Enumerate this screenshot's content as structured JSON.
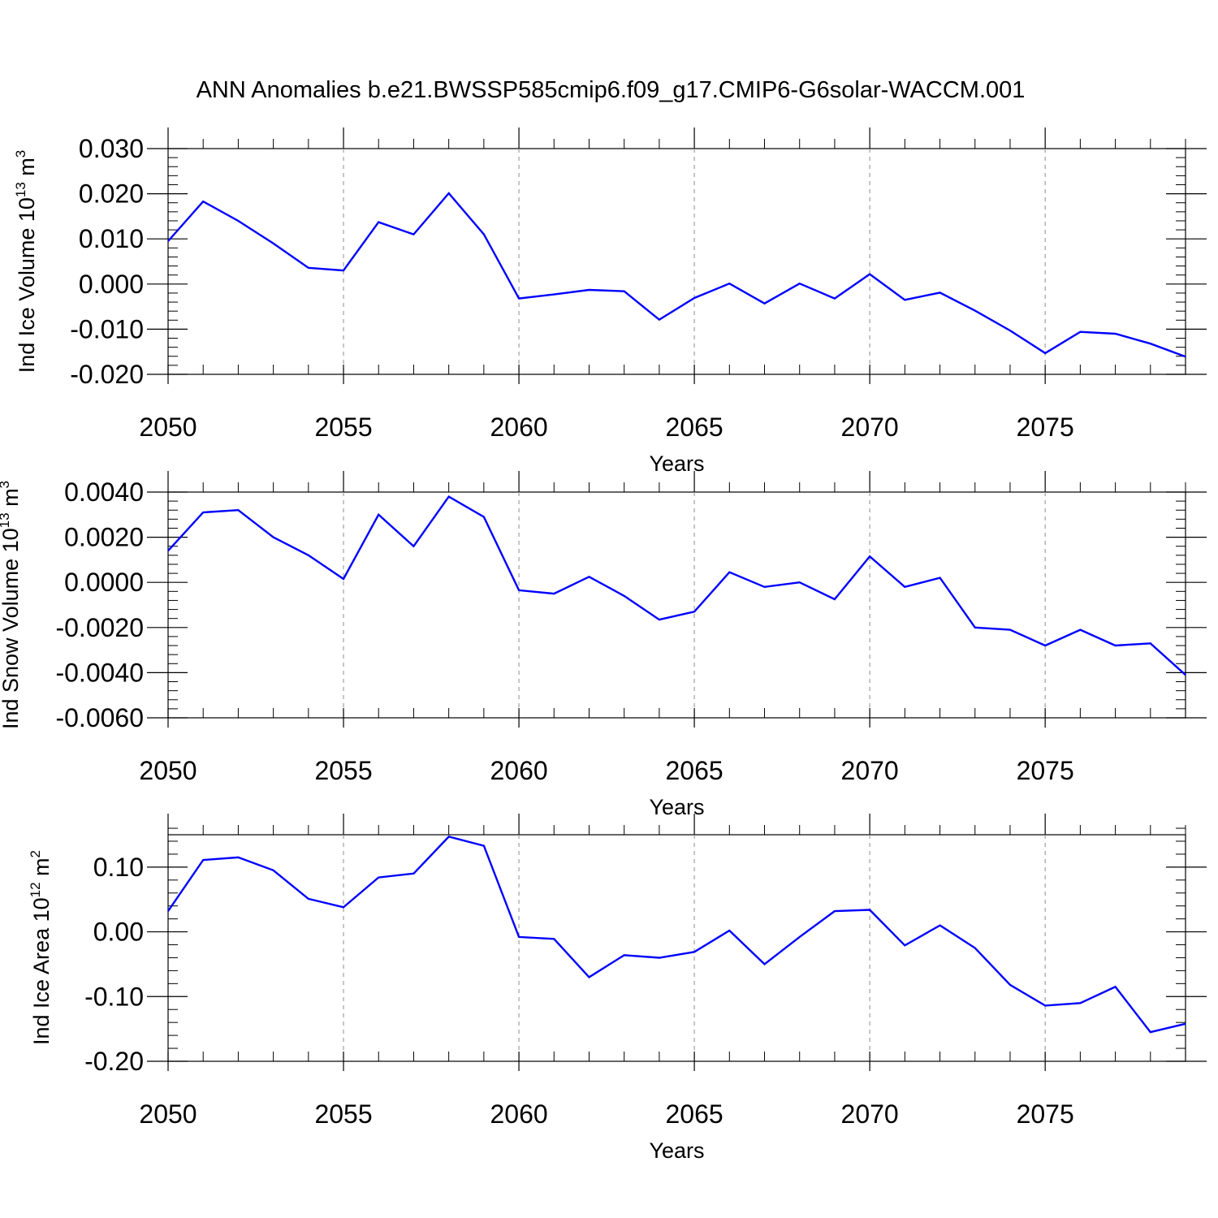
{
  "title": "ANN Anomalies b.e21.BWSSP585cmip6.f09_g17.CMIP6-G6solar-WACCM.001",
  "colors": {
    "line": "#0000ff",
    "axis": "#000000",
    "grid": "#a0a0a0"
  },
  "chart_data": [
    {
      "type": "line",
      "ylabel": "Ind Ice Volume 10",
      "ylabel_exp": "13",
      "ylabel_unit": " m",
      "ylabel_unit_exp": "3",
      "xlabel": "Years",
      "xlim": [
        2050,
        2079
      ],
      "ylim": [
        -0.02,
        0.03
      ],
      "yticks": [
        -0.02,
        -0.01,
        0.0,
        0.01,
        0.02,
        0.03
      ],
      "yticklabels": [
        "-0.020",
        "-0.010",
        "0.000",
        "0.010",
        "0.020",
        "0.030"
      ],
      "ymajor_step": 0.01,
      "yminor_step": 0.002,
      "xticks": [
        2050,
        2055,
        2060,
        2065,
        2070,
        2075
      ],
      "xticklabels": [
        "2050",
        "2055",
        "2060",
        "2065",
        "2070",
        "2075"
      ],
      "x": [
        2050,
        2051,
        2052,
        2053,
        2054,
        2055,
        2056,
        2057,
        2058,
        2059,
        2060,
        2061,
        2062,
        2063,
        2064,
        2065,
        2066,
        2067,
        2068,
        2069,
        2070,
        2071,
        2072,
        2073,
        2074,
        2075,
        2076,
        2077,
        2078,
        2079
      ],
      "y": [
        0.0095,
        0.0183,
        0.014,
        0.009,
        0.0036,
        0.003,
        0.0137,
        0.011,
        0.0201,
        0.011,
        -0.0032,
        -0.0023,
        -0.0013,
        -0.0016,
        -0.0079,
        -0.0031,
        0.0001,
        -0.0043,
        0.0001,
        -0.0032,
        0.0022,
        -0.0035,
        -0.0019,
        -0.0059,
        -0.0103,
        -0.0153,
        -0.0106,
        -0.011,
        -0.0132,
        -0.0161
      ]
    },
    {
      "type": "line",
      "ylabel": "Ind Snow Volume 10",
      "ylabel_exp": "13",
      "ylabel_unit": " m",
      "ylabel_unit_exp": "3",
      "xlabel": "Years",
      "xlim": [
        2050,
        2079
      ],
      "ylim": [
        -0.006,
        0.004
      ],
      "yticks": [
        -0.006,
        -0.004,
        -0.002,
        0.0,
        0.002,
        0.004
      ],
      "yticklabels": [
        "-0.0060",
        "-0.0040",
        "-0.0020",
        "0.0000",
        "0.0020",
        "0.0040"
      ],
      "ymajor_step": 0.002,
      "yminor_step": 0.0004,
      "xticks": [
        2050,
        2055,
        2060,
        2065,
        2070,
        2075
      ],
      "xticklabels": [
        "2050",
        "2055",
        "2060",
        "2065",
        "2070",
        "2075"
      ],
      "x": [
        2050,
        2051,
        2052,
        2053,
        2054,
        2055,
        2056,
        2057,
        2058,
        2059,
        2060,
        2061,
        2062,
        2063,
        2064,
        2065,
        2066,
        2067,
        2068,
        2069,
        2070,
        2071,
        2072,
        2073,
        2074,
        2075,
        2076,
        2077,
        2078,
        2079
      ],
      "y": [
        0.0014,
        0.0031,
        0.0032,
        0.002,
        0.0012,
        0.00015,
        0.003,
        0.0016,
        0.0038,
        0.0029,
        -0.00035,
        -0.0005,
        0.00025,
        -0.0006,
        -0.00165,
        -0.0013,
        0.00045,
        -0.0002,
        0.0,
        -0.00075,
        0.00115,
        -0.0002,
        0.0002,
        -0.002,
        -0.0021,
        -0.0028,
        -0.0021,
        -0.0028,
        -0.0027,
        -0.0041
      ]
    },
    {
      "type": "line",
      "ylabel": "Ind Ice Area 10",
      "ylabel_exp": "12",
      "ylabel_unit": " m",
      "ylabel_unit_exp": "2",
      "xlabel": "Years",
      "xlim": [
        2050,
        2079
      ],
      "ylim": [
        -0.2,
        0.15
      ],
      "yticks": [
        -0.2,
        -0.1,
        0.0,
        0.1
      ],
      "yticklabels": [
        "-0.20",
        "-0.10",
        "0.00",
        "0.10"
      ],
      "ymajor_step": 0.1,
      "yminor_step": 0.02,
      "xticks": [
        2050,
        2055,
        2060,
        2065,
        2070,
        2075
      ],
      "xticklabels": [
        "2050",
        "2055",
        "2060",
        "2065",
        "2070",
        "2075"
      ],
      "x": [
        2050,
        2051,
        2052,
        2053,
        2054,
        2055,
        2056,
        2057,
        2058,
        2059,
        2060,
        2061,
        2062,
        2063,
        2064,
        2065,
        2066,
        2067,
        2068,
        2069,
        2070,
        2071,
        2072,
        2073,
        2074,
        2075,
        2076,
        2077,
        2078,
        2079
      ],
      "y": [
        0.032,
        0.111,
        0.115,
        0.095,
        0.051,
        0.038,
        0.084,
        0.09,
        0.147,
        0.133,
        -0.008,
        -0.011,
        -0.07,
        -0.036,
        -0.04,
        -0.031,
        0.002,
        -0.05,
        -0.008,
        0.032,
        0.034,
        -0.021,
        0.01,
        -0.025,
        -0.082,
        -0.114,
        -0.11,
        -0.085,
        -0.155,
        -0.142
      ]
    }
  ]
}
